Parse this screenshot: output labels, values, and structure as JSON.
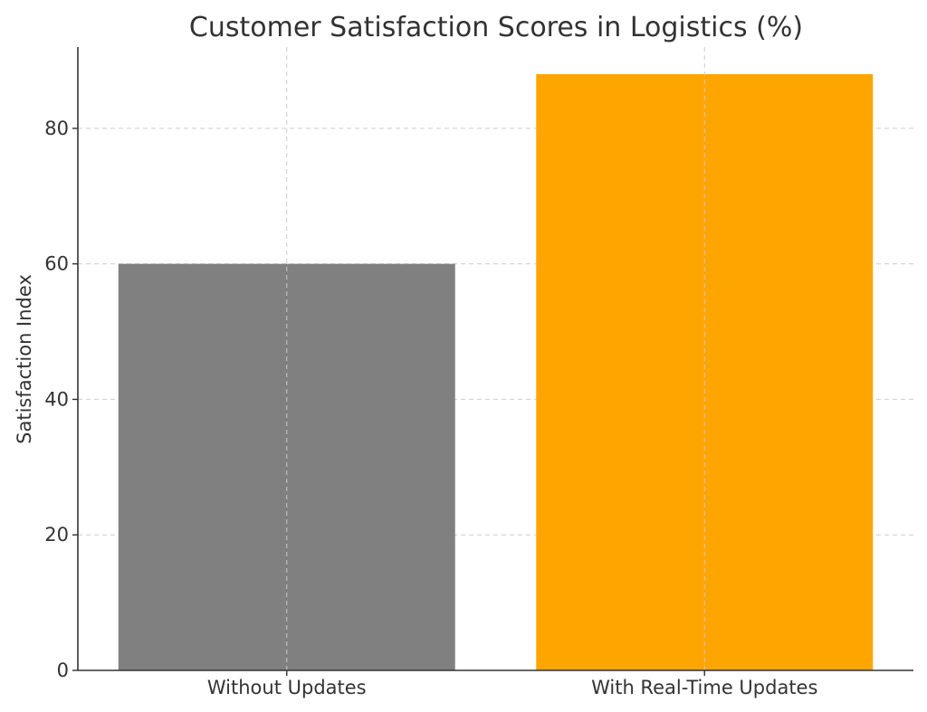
{
  "chart_data": {
    "type": "bar",
    "title": "Customer Satisfaction Scores in Logistics (%)",
    "xlabel": "",
    "ylabel": "Satisfaction Index",
    "categories": [
      "Without Updates",
      "With Real-Time Updates"
    ],
    "values": [
      60,
      88
    ],
    "colors": [
      "#808080",
      "#ffa500"
    ],
    "ylim": [
      0,
      92
    ],
    "yticks": [
      0,
      20,
      40,
      60,
      80
    ],
    "grid": true,
    "legend": "none"
  }
}
